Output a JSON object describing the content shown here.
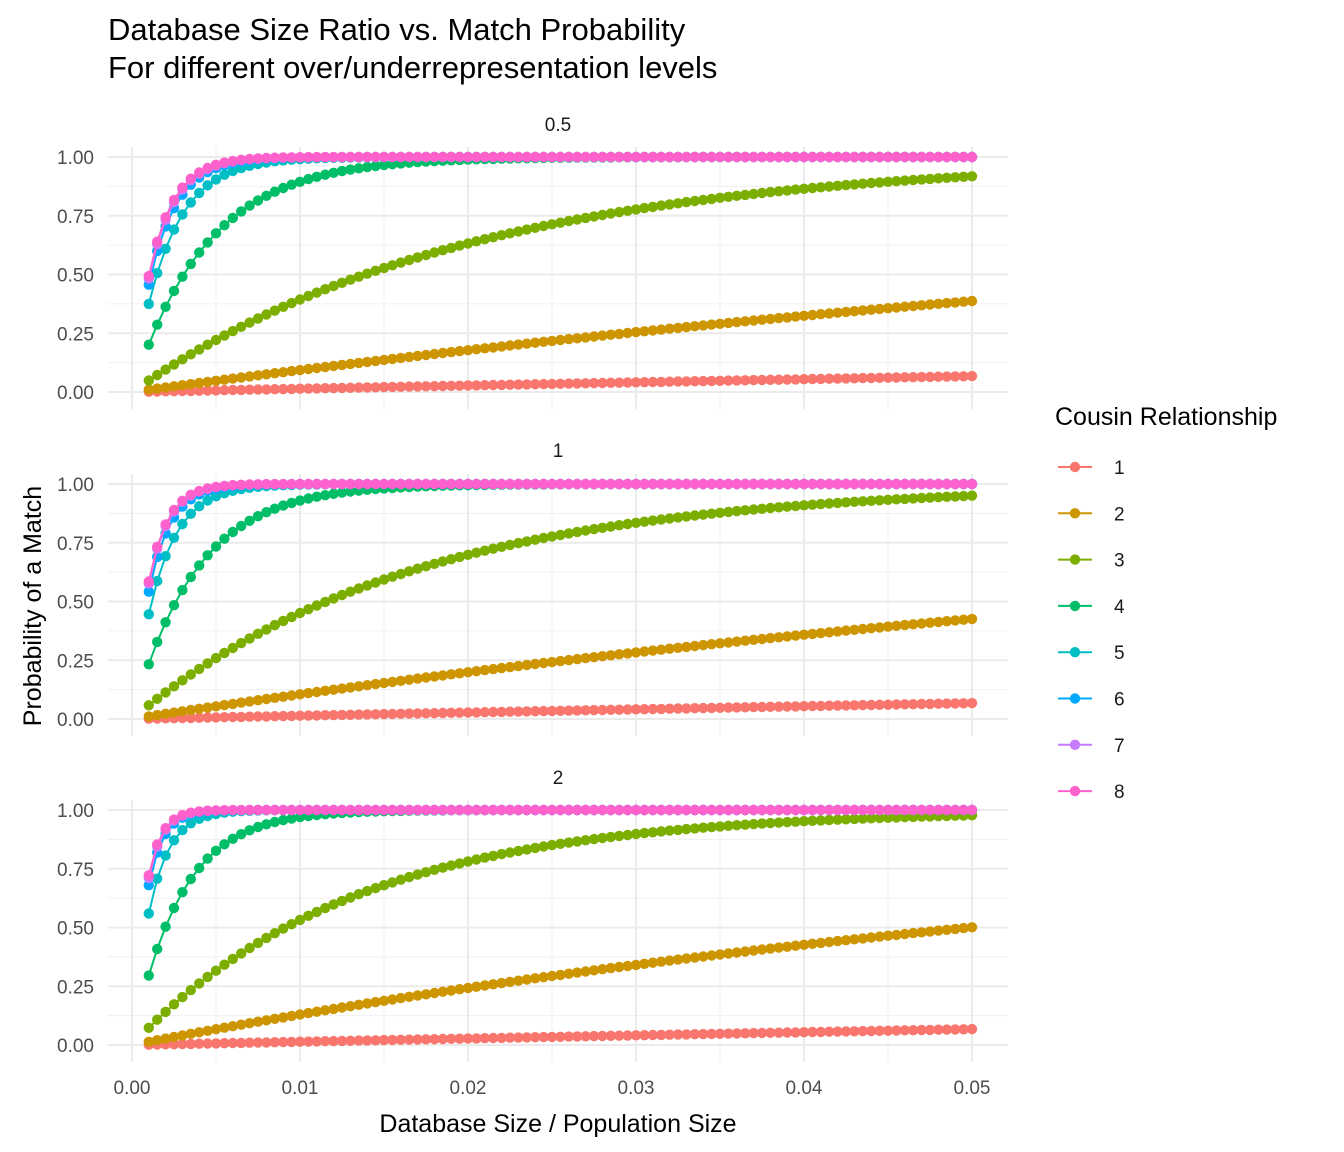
{
  "chart_data": {
    "type": "line",
    "title": "Database Size Ratio vs. Match Probability",
    "subtitle": "For different over/underrepresentation levels",
    "xlabel": "Database Size / Population Size",
    "ylabel": "Probability of a Match",
    "xlim": [
      0.001,
      0.05
    ],
    "ylim": [
      0,
      1
    ],
    "x_ticks": [
      "0.00",
      "0.01",
      "0.02",
      "0.03",
      "0.04",
      "0.05"
    ],
    "y_ticks": [
      "0.00",
      "0.25",
      "0.50",
      "0.75",
      "1.00"
    ],
    "x_start": 0.001,
    "x_end": 0.05,
    "x_step": 0.0005,
    "model": "p = 1 - exp(-rate * x)",
    "legend": {
      "title": "Cousin Relationship",
      "position": "right",
      "entries": [
        {
          "name": "1",
          "color": "#F8766D"
        },
        {
          "name": "2",
          "color": "#CD9600"
        },
        {
          "name": "3",
          "color": "#7CAE00"
        },
        {
          "name": "4",
          "color": "#00BE67"
        },
        {
          "name": "5",
          "color": "#00BFC4"
        },
        {
          "name": "6",
          "color": "#00A9FF"
        },
        {
          "name": "7",
          "color": "#C77CFF"
        },
        {
          "name": "8",
          "color": "#FF61CC"
        }
      ]
    },
    "panels": [
      {
        "label": "0.5",
        "rates": [
          1.4,
          9.8,
          50,
          225,
          470,
          610,
          660,
          680
        ]
      },
      {
        "label": "1",
        "rates": [
          1.4,
          11.1,
          60,
          265,
          590,
          780,
          860,
          880
        ]
      },
      {
        "label": "2",
        "rates": [
          1.4,
          13.9,
          76,
          350,
          820,
          1140,
          1240,
          1280
        ]
      }
    ]
  }
}
